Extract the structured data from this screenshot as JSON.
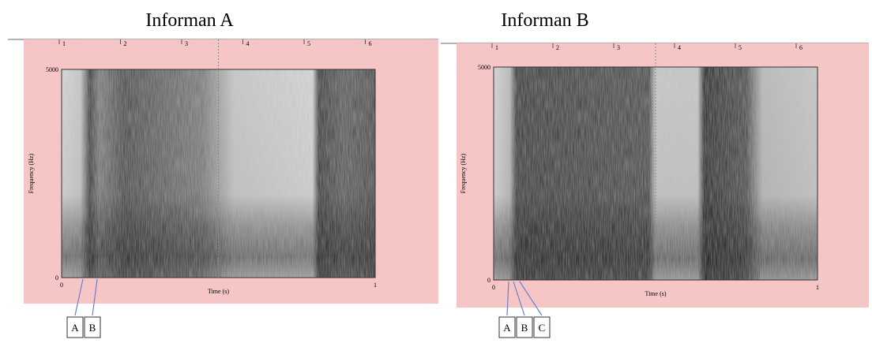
{
  "panels": [
    {
      "title": "Informan A",
      "y_axis_label": "Frequency (Hz)",
      "x_axis_label": "Time (s)",
      "y_top": "5000",
      "y_bottom": "0",
      "x_start": "0",
      "x_end": "1",
      "top_ruler": [
        "1",
        "2",
        "3",
        "4",
        "5",
        "6"
      ],
      "markers": [
        "A",
        "B"
      ]
    },
    {
      "title": "Informan B",
      "y_axis_label": "Frequency (Hz)",
      "x_axis_label": "Time (s)",
      "y_top": "5000",
      "y_bottom": "0",
      "x_start": "0",
      "x_end": "1",
      "top_ruler": [
        "1",
        "2",
        "3",
        "4",
        "5",
        "6"
      ],
      "markers": [
        "A",
        "B",
        "C"
      ]
    }
  ]
}
